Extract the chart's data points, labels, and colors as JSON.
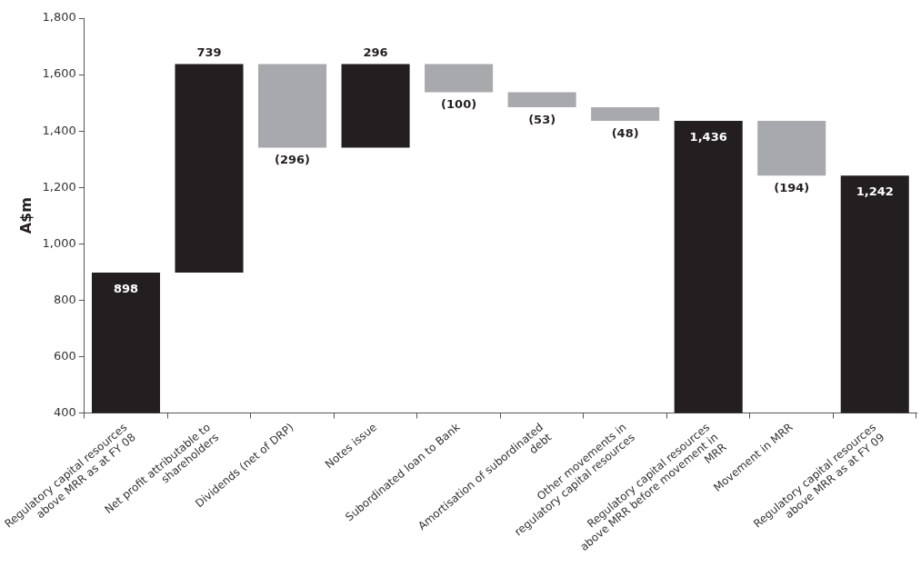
{
  "chart_data": {
    "type": "bar",
    "ylabel": "A$m",
    "categories": [
      "Regulatory capital resources above MRR as at FY 08",
      "Net profit attributable to shareholders",
      "Dividends (net of DRP)",
      "Notes issue",
      "Subordinated loan to Bank",
      "Amortisation of subordinated debt",
      "Other movements in regulatory capital resources",
      "Regulatory capital resources above MRR before movement in MRR",
      "Movement in MRR",
      "Regulatory capital resources above MRR as at FY 09"
    ],
    "values": [
      898,
      739,
      -296,
      296,
      -100,
      -53,
      -48,
      1436,
      -194,
      1242
    ],
    "base": [
      null,
      898,
      1637,
      1341,
      1637,
      1537,
      1484,
      null,
      1436,
      null
    ],
    "colors": [
      "#231f20",
      "#231f20",
      "#a7a9ac",
      "#231f20",
      "#a7a9ac",
      "#a7a9ac",
      "#a7a9ac",
      "#231f20",
      "#a7a9ac",
      "#231f20"
    ],
    "value_labels": [
      "898",
      "739",
      "(296)",
      "296",
      "(100)",
      "(53)",
      "(48)",
      "1,436",
      "(194)",
      "1,242"
    ],
    "ylim": [
      400,
      1800
    ],
    "yticks": [
      {
        "value": 400,
        "label": "400"
      },
      {
        "value": 600,
        "label": "600"
      },
      {
        "value": 800,
        "label": "800"
      },
      {
        "value": 1000,
        "label": "1,000"
      },
      {
        "value": 1200,
        "label": "1,200"
      },
      {
        "value": 1400,
        "label": "1,400"
      },
      {
        "value": 1600,
        "label": "1,600"
      },
      {
        "value": 1800,
        "label": "1,800"
      }
    ],
    "grid": false,
    "legend": false
  }
}
